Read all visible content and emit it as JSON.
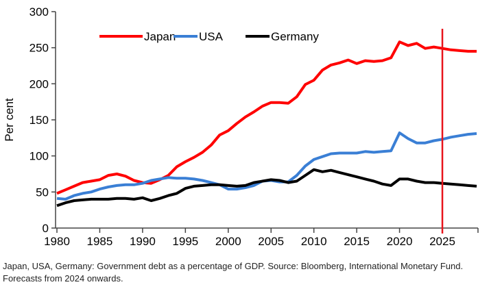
{
  "chart_data": {
    "type": "line",
    "title": "",
    "xlabel": "",
    "ylabel": "Per cent",
    "xlim": [
      1980,
      2029
    ],
    "ylim": [
      0,
      300
    ],
    "x_ticks": [
      1980,
      1985,
      1990,
      1995,
      2000,
      2005,
      2010,
      2015,
      2020,
      2025
    ],
    "y_ticks": [
      0,
      50,
      100,
      150,
      200,
      250,
      300
    ],
    "grid": false,
    "legend": "top",
    "vertical_marker": {
      "x": 2025,
      "color": "#e8141b"
    },
    "x": [
      1980,
      1981,
      1982,
      1983,
      1984,
      1985,
      1986,
      1987,
      1988,
      1989,
      1990,
      1991,
      1992,
      1993,
      1994,
      1995,
      1996,
      1997,
      1998,
      1999,
      2000,
      2001,
      2002,
      2003,
      2004,
      2005,
      2006,
      2007,
      2008,
      2009,
      2010,
      2011,
      2012,
      2013,
      2014,
      2015,
      2016,
      2017,
      2018,
      2019,
      2020,
      2021,
      2022,
      2023,
      2024,
      2025,
      2026,
      2027,
      2028,
      2029
    ],
    "series": [
      {
        "name": "Japan",
        "color": "#ff0000",
        "values": [
          48,
          53,
          58,
          63,
          65,
          67,
          73,
          75,
          72,
          66,
          63,
          62,
          67,
          73,
          85,
          92,
          98,
          105,
          115,
          129,
          135,
          145,
          154,
          161,
          169,
          174,
          174,
          173,
          182,
          199,
          205,
          219,
          226,
          229,
          233,
          228,
          232,
          231,
          232,
          236,
          258,
          253,
          256,
          249,
          251,
          249,
          247,
          246,
          245,
          245
        ]
      },
      {
        "name": "USA",
        "color": "#3a7fd5",
        "values": [
          41,
          40,
          45,
          48,
          50,
          54,
          57,
          59,
          60,
          60,
          62,
          66,
          68,
          70,
          69,
          69,
          68,
          66,
          63,
          60,
          54,
          54,
          56,
          59,
          65,
          66,
          64,
          64,
          73,
          86,
          95,
          99,
          103,
          104,
          104,
          104,
          106,
          105,
          106,
          107,
          132,
          124,
          118,
          118,
          121,
          123,
          126,
          128,
          130,
          131
        ]
      },
      {
        "name": "Germany",
        "color": "#000000",
        "values": [
          31,
          35,
          38,
          39,
          40,
          40,
          40,
          41,
          41,
          40,
          42,
          38,
          41,
          45,
          48,
          55,
          58,
          59,
          60,
          60,
          59,
          58,
          59,
          63,
          65,
          67,
          66,
          63,
          65,
          73,
          81,
          78,
          80,
          77,
          74,
          71,
          68,
          65,
          61,
          59,
          68,
          68,
          65,
          63,
          63,
          62,
          61,
          60,
          59,
          58
        ]
      }
    ]
  },
  "caption": "Japan, USA, Germany: Government debt as a percentage of GDP. Source: Bloomberg, International Monetary Fund. Forecasts from 2024 onwards."
}
